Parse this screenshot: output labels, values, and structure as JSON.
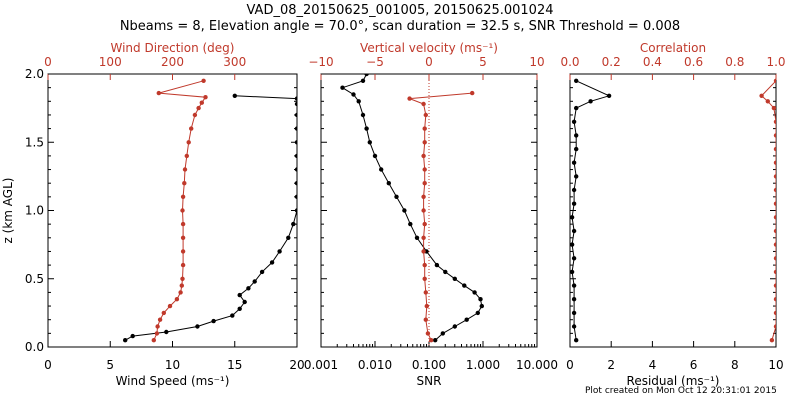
{
  "title": "VAD_08_20150625_001005, 20150625.001024",
  "subtitle": "Nbeams = 8, Elevation angle = 70.0°, scan duration = 32.5 s, SNR Threshold = 0.008",
  "footer": "Plot created on Mon Oct 12 20:31:01 2015",
  "colors": {
    "primary": "#000000",
    "secondary": "#c0392b"
  },
  "chart_data": [
    {
      "type": "line",
      "ylabel": "z (km AGL)",
      "ylim": [
        0,
        2
      ],
      "yticks": [
        "0.0",
        "0.5",
        "1.0",
        "1.5",
        "2.0"
      ],
      "bottom_axis": {
        "label": "Wind Speed (ms⁻¹)",
        "range": [
          0,
          20
        ],
        "ticks": [
          "0",
          "5",
          "10",
          "15",
          "20"
        ]
      },
      "top_axis": {
        "label": "Wind Direction (deg)",
        "range": [
          0,
          400
        ],
        "ticks": [
          "0",
          "100",
          "200",
          "300"
        ]
      },
      "series": [
        {
          "axis": "bottom",
          "color": "#000000",
          "z": [
            0.05,
            0.08,
            0.11,
            0.15,
            0.19,
            0.23,
            0.28,
            0.33,
            0.38,
            0.43,
            0.48,
            0.55,
            0.62,
            0.7,
            0.8,
            0.9,
            1.0,
            1.1,
            1.2,
            1.3,
            1.4,
            1.5,
            1.6,
            1.7,
            1.78,
            1.82,
            1.84
          ],
          "values": [
            6.2,
            6.8,
            9.5,
            12.0,
            13.3,
            14.8,
            15.4,
            15.8,
            15.4,
            16.1,
            16.6,
            17.2,
            18.0,
            18.6,
            19.3,
            19.7,
            20.0,
            20.0,
            20.0,
            20.0,
            20.0,
            20.0,
            20.0,
            20.0,
            20.0,
            20.0,
            15.0
          ]
        },
        {
          "axis": "top",
          "color": "#c0392b",
          "z": [
            0.05,
            0.1,
            0.15,
            0.2,
            0.25,
            0.3,
            0.35,
            0.4,
            0.45,
            0.5,
            0.6,
            0.7,
            0.8,
            0.9,
            1.0,
            1.1,
            1.2,
            1.3,
            1.4,
            1.5,
            1.6,
            1.7,
            1.75,
            1.79,
            1.83,
            1.86,
            1.95
          ],
          "values": [
            170,
            175,
            176,
            180,
            186,
            196,
            207,
            213,
            215,
            216,
            217,
            217,
            217,
            217,
            216,
            217,
            219,
            220,
            223,
            226,
            230,
            236,
            242,
            247,
            253,
            178,
            250
          ]
        }
      ]
    },
    {
      "type": "line",
      "bottom_axis": {
        "label": "SNR",
        "scale": "log",
        "range": [
          0.001,
          10
        ],
        "ticks": [
          "0.001",
          "0.010",
          "0.100",
          "1.000",
          "10.000"
        ]
      },
      "top_axis": {
        "label": "Vertical velocity (ms⁻¹)",
        "range": [
          -10,
          10
        ],
        "ticks": [
          "−10",
          "−5",
          "0",
          "5",
          "10"
        ]
      },
      "series": [
        {
          "axis": "bottom",
          "color": "#000000",
          "z": [
            0.05,
            0.1,
            0.15,
            0.2,
            0.25,
            0.3,
            0.35,
            0.4,
            0.45,
            0.5,
            0.55,
            0.6,
            0.7,
            0.8,
            0.9,
            1.0,
            1.1,
            1.2,
            1.3,
            1.4,
            1.5,
            1.6,
            1.7,
            1.8,
            1.85,
            1.9,
            1.95,
            2.0
          ],
          "values": [
            0.13,
            0.18,
            0.3,
            0.5,
            0.8,
            0.95,
            0.9,
            0.7,
            0.45,
            0.3,
            0.2,
            0.14,
            0.09,
            0.06,
            0.045,
            0.035,
            0.025,
            0.018,
            0.013,
            0.01,
            0.008,
            0.007,
            0.006,
            0.005,
            0.004,
            0.0025,
            0.006,
            0.007
          ]
        },
        {
          "axis": "top",
          "color": "#c0392b",
          "z": [
            0.05,
            0.1,
            0.2,
            0.3,
            0.4,
            0.5,
            0.6,
            0.7,
            0.8,
            0.9,
            1.0,
            1.1,
            1.2,
            1.3,
            1.4,
            1.5,
            1.6,
            1.7,
            1.78,
            1.82,
            1.86
          ],
          "values": [
            0.2,
            -0.1,
            -0.3,
            -0.2,
            -0.3,
            -0.4,
            -0.4,
            -0.5,
            -0.5,
            -0.4,
            -0.5,
            -0.5,
            -0.4,
            -0.4,
            -0.5,
            -0.4,
            -0.4,
            -0.3,
            -0.5,
            -1.8,
            4.0
          ]
        }
      ]
    },
    {
      "type": "line",
      "bottom_axis": {
        "label": "Residual (ms⁻¹)",
        "range": [
          0,
          10
        ],
        "ticks": [
          "0",
          "2",
          "4",
          "6",
          "8",
          "10"
        ]
      },
      "top_axis": {
        "label": "Correlation",
        "range": [
          0,
          1
        ],
        "ticks": [
          "0.0",
          "0.2",
          "0.4",
          "0.6",
          "0.8",
          "1.0"
        ]
      },
      "series": [
        {
          "axis": "bottom",
          "color": "#000000",
          "z": [
            0.05,
            0.15,
            0.25,
            0.35,
            0.45,
            0.55,
            0.65,
            0.75,
            0.85,
            0.95,
            1.05,
            1.15,
            1.25,
            1.35,
            1.45,
            1.55,
            1.65,
            1.75,
            1.8,
            1.84,
            1.95
          ],
          "values": [
            0.3,
            0.2,
            0.2,
            0.2,
            0.2,
            0.1,
            0.2,
            0.1,
            0.2,
            0.1,
            0.2,
            0.2,
            0.3,
            0.2,
            0.3,
            0.3,
            0.2,
            0.3,
            1.0,
            1.9,
            0.3
          ]
        },
        {
          "axis": "top",
          "color": "#c0392b",
          "z": [
            0.05,
            0.15,
            0.25,
            0.35,
            0.45,
            0.55,
            0.65,
            0.75,
            0.85,
            0.95,
            1.05,
            1.15,
            1.25,
            1.35,
            1.45,
            1.55,
            1.65,
            1.75,
            1.8,
            1.84,
            1.95
          ],
          "values": [
            0.98,
            1.0,
            1.0,
            1.0,
            1.0,
            1.0,
            1.0,
            1.0,
            1.0,
            1.0,
            1.0,
            1.0,
            1.0,
            1.0,
            1.0,
            1.0,
            1.0,
            0.99,
            0.96,
            0.93,
            1.0
          ]
        }
      ]
    }
  ]
}
